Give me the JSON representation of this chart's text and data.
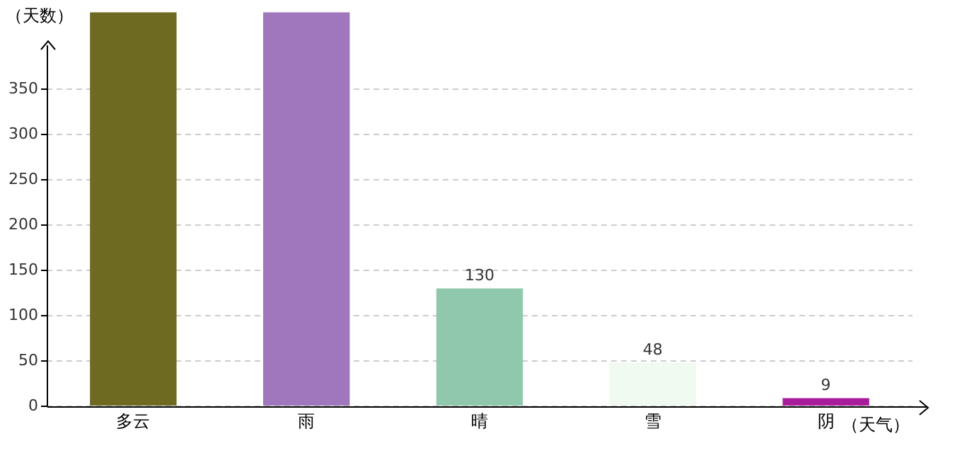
{
  "chart_data": {
    "type": "bar",
    "ylabel": "（天数）",
    "xlabel": "（天气）",
    "categories": [
      "多云",
      "雨",
      "晴",
      "雪",
      "阴"
    ],
    "values": [
      435,
      435,
      130,
      48,
      9
    ],
    "colors": [
      "#6e6a22",
      "#a077bd",
      "#8fc8ad",
      "#f0faf0",
      "#a81c9c"
    ],
    "value_labels": [
      null,
      null,
      "130",
      "48",
      "9"
    ],
    "ylim": [
      0,
      435
    ],
    "yticks": [
      0,
      50,
      100,
      150,
      200,
      250,
      300,
      350
    ],
    "grid": "y",
    "legend": false
  }
}
